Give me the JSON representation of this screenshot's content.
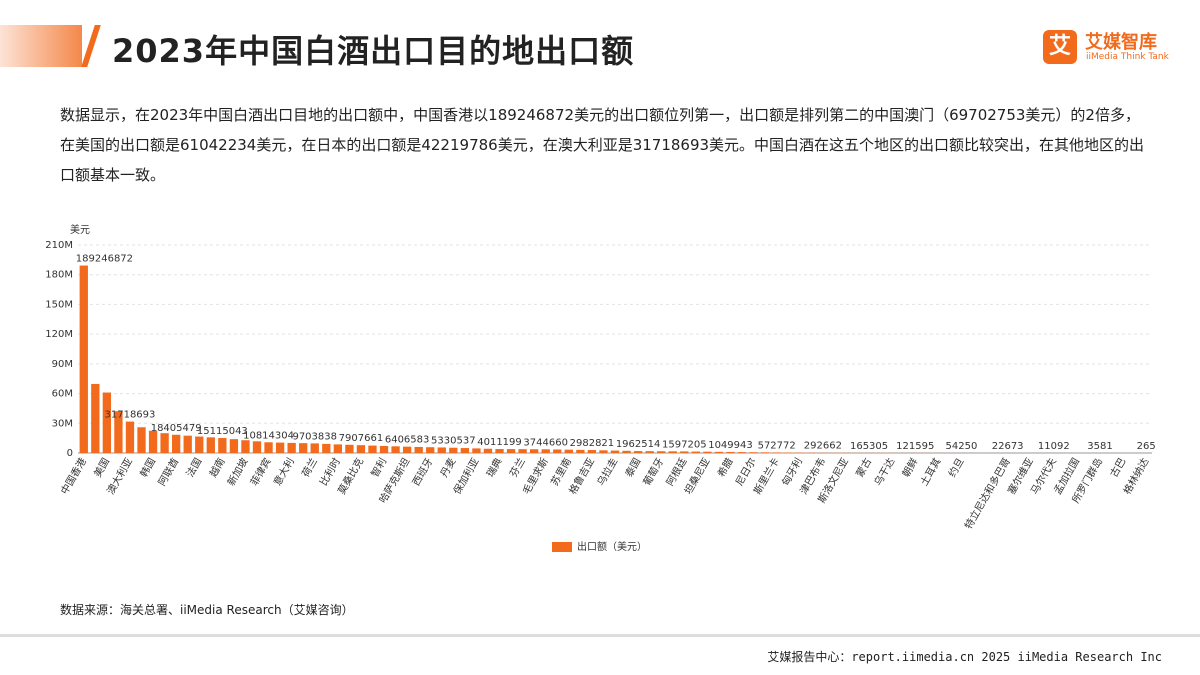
{
  "header": {
    "title": "2023年中国白酒出口目的地出口额"
  },
  "logo": {
    "icon": "艾",
    "name": "艾媒智库",
    "subtitle": "iiMedia Think Tank"
  },
  "description": "数据显示，在2023年中国白酒出口目地的出口额中，中国香港以189246872美元的出口额位列第一，出口额是排列第二的中国澳门（69702753美元）的2倍多，在美国的出口额是61042234美元，在日本的出口额是42219786美元，在澳大利亚是31718693美元。中国白酒在这五个地区的出口额比较突出，在其他地区的出口额基本一致。",
  "chart_data": {
    "type": "bar",
    "y_label": "美元",
    "color": "#f26b1d",
    "grid": true,
    "legend": "bottom",
    "series": [
      {
        "name": "出口额（美元）",
        "color": "#f26b1d",
        "values": [
          189246872,
          69702753,
          61042234,
          42219786,
          31718693,
          26000000,
          22500000,
          20000000,
          18405479,
          17500000,
          16600000,
          15800000,
          15115043,
          14000000,
          12900000,
          11800000,
          10814304,
          10500000,
          10200000,
          9950000,
          9703838,
          9200000,
          8700000,
          8300000,
          7907661,
          7500000,
          7100000,
          6750000,
          6406583,
          6100000,
          5850000,
          5600000,
          5330537,
          5000000,
          4650000,
          4300000,
          4011199,
          3950000,
          3880000,
          3810000,
          3744660,
          3550000,
          3350000,
          3150000,
          2982821,
          2700000,
          2450000,
          2200000,
          1962514,
          1870000,
          1780000,
          1690000,
          1597205,
          1450000,
          1320000,
          1180000,
          1049943,
          920000,
          800000,
          680000,
          572772,
          480000,
          400000,
          340000,
          292662,
          260000,
          220000,
          190000,
          165305,
          155000,
          142000,
          131000,
          121595,
          102000,
          85000,
          68000,
          54250,
          45000,
          36000,
          29000,
          22673,
          19000,
          16000,
          13500,
          11092,
          8900,
          6800,
          5000,
          3581,
          2500,
          1400,
          700,
          265
        ]
      }
    ],
    "categories": [
      "中国香港",
      null,
      "美国",
      null,
      "澳大利亚",
      null,
      "韩国",
      null,
      "阿联酋",
      null,
      "法国",
      null,
      "越南",
      null,
      "新加坡",
      null,
      "菲律宾",
      null,
      "意大利",
      null,
      "荷兰",
      null,
      "比利时",
      null,
      "莫桑比克",
      null,
      "智利",
      null,
      "哈萨克斯坦",
      null,
      "西班牙",
      null,
      "丹麦",
      null,
      "保加利亚",
      null,
      "瑞典",
      null,
      "芬兰",
      null,
      "毛里求斯",
      null,
      "苏里南",
      null,
      "格鲁吉亚",
      null,
      "乌拉圭",
      null,
      "泰国",
      null,
      "葡萄牙",
      null,
      "阿根廷",
      null,
      "坦桑尼亚",
      null,
      "希腊",
      null,
      "尼日尔",
      null,
      "斯里兰卡",
      null,
      "匈牙利",
      null,
      "津巴布韦",
      null,
      "斯洛文尼亚",
      null,
      "蒙古",
      null,
      "乌干达",
      null,
      "朝鲜",
      null,
      "土耳其",
      null,
      "约旦",
      null,
      null,
      null,
      "特立尼达和多巴哥",
      null,
      "塞尔维亚",
      null,
      "马尔代夫",
      null,
      "孟加拉国",
      null,
      "所罗门群岛",
      null,
      "古巴",
      null,
      "格林纳达"
    ],
    "ylim": [
      0,
      210000000
    ],
    "yticks": [
      0,
      {
        "value": 30000000,
        "label": "30M"
      },
      {
        "value": 60000000,
        "label": "60M"
      },
      {
        "value": 90000000,
        "label": "90M"
      },
      {
        "value": 120000000,
        "label": "120M"
      },
      {
        "value": 150000000,
        "label": "150M"
      },
      {
        "value": 180000000,
        "label": "180M"
      },
      {
        "value": 210000000,
        "label": "210M"
      }
    ]
  },
  "source": "数据来源：海关总署、iiMedia Research（艾媒咨询）",
  "footer": "艾媒报告中心：report.iimedia.cn   2025 iiMedia Research Inc"
}
